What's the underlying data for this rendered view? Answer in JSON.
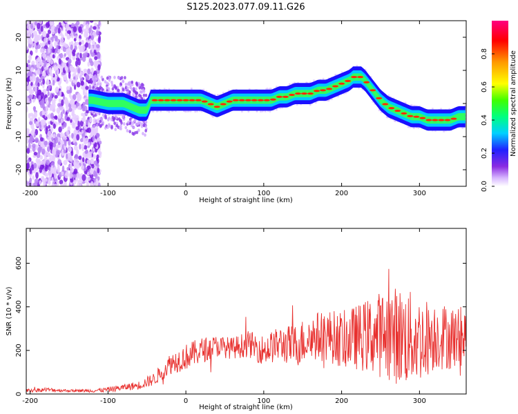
{
  "title": "S125.2023.077.09.11.G26",
  "chart_data": [
    {
      "type": "heatmap",
      "xlabel": "Height of straight line (km)",
      "ylabel": "Frequency (Hz)",
      "xlim": [
        -205,
        360
      ],
      "ylim": [
        -25,
        25
      ],
      "x_ticks": [
        -200,
        -100,
        0,
        100,
        200,
        300
      ],
      "y_ticks": [
        -20,
        -10,
        0,
        10,
        20
      ],
      "colorbar": {
        "label": "Normalized spectral amplitude",
        "range": [
          0,
          1
        ],
        "ticks": [
          "0.0",
          "0.2",
          "0.4",
          "0.6",
          "0.8"
        ],
        "tick_values": [
          0,
          0.2,
          0.4,
          0.6,
          0.8
        ]
      },
      "ridge": {
        "x": [
          -120,
          -100,
          -80,
          -60,
          -50,
          -45,
          -40,
          -30,
          -20,
          -10,
          0,
          10,
          20,
          30,
          40,
          50,
          60,
          70,
          80,
          90,
          100,
          110,
          120,
          130,
          140,
          150,
          160,
          170,
          180,
          190,
          200,
          210,
          215,
          220,
          225,
          230,
          240,
          250,
          260,
          270,
          280,
          290,
          300,
          310,
          320,
          330,
          340,
          350,
          360
        ],
        "freq": [
          1,
          0,
          0,
          -2,
          -2,
          1,
          1,
          1,
          1,
          1,
          1,
          1,
          1,
          0,
          -1,
          0,
          1,
          1,
          1,
          1,
          1,
          1,
          2,
          2,
          3,
          3,
          3,
          4,
          4,
          5,
          6,
          7,
          8,
          8,
          8,
          7,
          4,
          1,
          -1,
          -2,
          -3,
          -4,
          -4,
          -5,
          -5,
          -5,
          -5,
          -4,
          -4
        ]
      }
    },
    {
      "type": "line",
      "xlabel": "Height of straight line (km)",
      "ylabel": "SNR (10 * v/v)",
      "xlim": [
        -205,
        360
      ],
      "ylim": [
        0,
        760
      ],
      "x_ticks": [
        -200,
        -100,
        0,
        100,
        200,
        300
      ],
      "y_ticks": [
        0,
        200,
        400,
        600
      ],
      "color": "#e8302e",
      "envelope": {
        "x": [
          -205,
          -180,
          -150,
          -120,
          -100,
          -80,
          -60,
          -40,
          -20,
          0,
          20,
          40,
          60,
          80,
          100,
          120,
          140,
          160,
          180,
          200,
          220,
          240,
          260,
          280,
          300,
          320,
          340,
          360
        ],
        "mean": [
          15,
          20,
          15,
          15,
          20,
          30,
          40,
          70,
          140,
          170,
          200,
          220,
          210,
          230,
          200,
          230,
          220,
          260,
          270,
          250,
          260,
          270,
          280,
          260,
          250,
          270,
          260,
          260
        ],
        "amp": [
          8,
          10,
          6,
          8,
          12,
          15,
          20,
          30,
          50,
          60,
          60,
          50,
          50,
          60,
          70,
          80,
          100,
          110,
          120,
          130,
          150,
          180,
          220,
          230,
          200,
          160,
          150,
          130
        ]
      }
    }
  ]
}
